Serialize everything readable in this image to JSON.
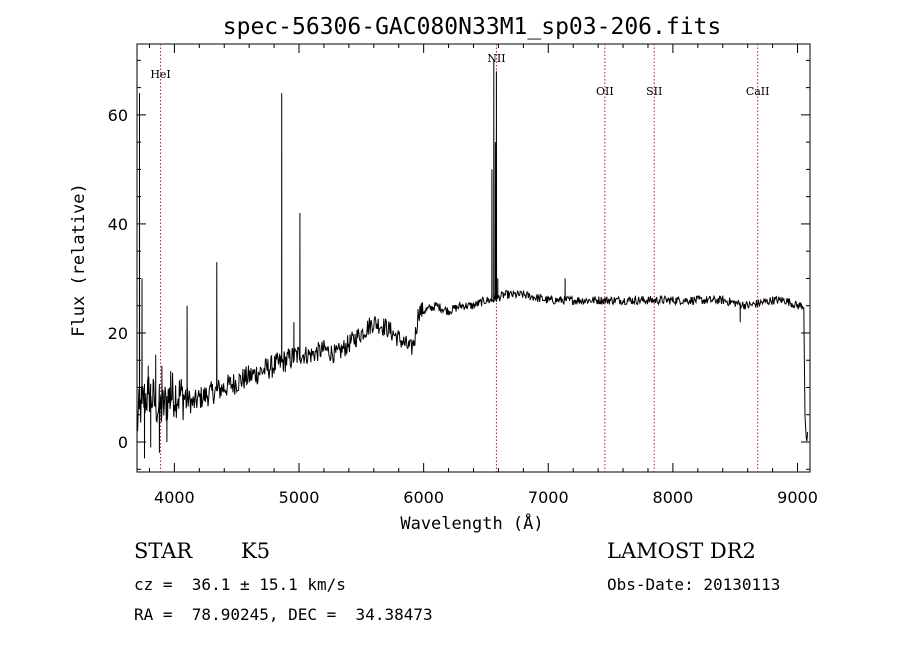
{
  "chart_data": {
    "type": "line",
    "title": "spec-56306-GAC080N33M1_sp03-206.fits",
    "xlabel": "Wavelength (Å)",
    "ylabel": "Flux (relative)",
    "xlim": [
      3700,
      9100
    ],
    "ylim": [
      -5.5,
      73
    ],
    "xticks": [
      4000,
      5000,
      6000,
      7000,
      8000,
      9000
    ],
    "yticks": [
      0,
      20,
      40,
      60
    ],
    "grid": false,
    "lines": [
      {
        "label": "HeI",
        "wavelength": 3889
      },
      {
        "label": "NII",
        "wavelength": 6584
      },
      {
        "label": "OII",
        "wavelength": 7454
      },
      {
        "label": "SII",
        "wavelength": 7850
      },
      {
        "label": "CaII",
        "wavelength": 8680
      }
    ],
    "anchors": [
      [
        3700,
        3
      ],
      [
        3720,
        6
      ],
      [
        3760,
        8
      ],
      [
        3800,
        9
      ],
      [
        3850,
        7
      ],
      [
        3900,
        6
      ],
      [
        3950,
        8
      ],
      [
        4000,
        9
      ],
      [
        4100,
        8
      ],
      [
        4150,
        7
      ],
      [
        4200,
        8
      ],
      [
        4300,
        9
      ],
      [
        4400,
        10
      ],
      [
        4500,
        11
      ],
      [
        4600,
        12
      ],
      [
        4700,
        13
      ],
      [
        4800,
        14
      ],
      [
        4900,
        15
      ],
      [
        5000,
        16
      ],
      [
        5100,
        16
      ],
      [
        5200,
        17
      ],
      [
        5300,
        16
      ],
      [
        5400,
        18
      ],
      [
        5500,
        20
      ],
      [
        5600,
        22
      ],
      [
        5700,
        21
      ],
      [
        5800,
        19
      ],
      [
        5900,
        17
      ],
      [
        5930,
        19
      ],
      [
        5960,
        24
      ],
      [
        6000,
        24
      ],
      [
        6100,
        25
      ],
      [
        6200,
        24
      ],
      [
        6300,
        25
      ],
      [
        6400,
        25
      ],
      [
        6500,
        26
      ],
      [
        6550,
        26
      ],
      [
        6650,
        27
      ],
      [
        6800,
        27
      ],
      [
        7000,
        26
      ],
      [
        7200,
        26
      ],
      [
        7400,
        26
      ],
      [
        7600,
        26
      ],
      [
        7800,
        26
      ],
      [
        8000,
        26
      ],
      [
        8200,
        26
      ],
      [
        8400,
        26
      ],
      [
        8600,
        25
      ],
      [
        8800,
        26
      ],
      [
        8900,
        26
      ],
      [
        9000,
        25
      ],
      [
        9050,
        25
      ],
      [
        9060,
        5
      ],
      [
        9070,
        0
      ],
      [
        9080,
        1
      ]
    ],
    "spikes": [
      [
        3720,
        64
      ],
      [
        3740,
        30
      ],
      [
        3760,
        -3
      ],
      [
        3790,
        14
      ],
      [
        3810,
        -1
      ],
      [
        3850,
        16
      ],
      [
        3880,
        -2
      ],
      [
        3900,
        14
      ],
      [
        3940,
        0
      ],
      [
        3970,
        13
      ],
      [
        4102,
        25
      ],
      [
        4340,
        33
      ],
      [
        4861,
        64
      ],
      [
        4959,
        22
      ],
      [
        5007,
        42
      ],
      [
        6548,
        50
      ],
      [
        6563,
        70
      ],
      [
        6575,
        55
      ],
      [
        6584,
        68
      ],
      [
        6595,
        30
      ],
      [
        7135,
        30
      ],
      [
        8540,
        22
      ]
    ]
  },
  "info": {
    "object_class": "STAR",
    "subclass": "K5",
    "survey": "LAMOST DR2",
    "redshift": "cz =  36.1 ± 15.1 km/s",
    "obs_date": "Obs-Date: 20130113",
    "coords": "RA =  78.90245, DEC =  34.38473"
  },
  "colors": {
    "spectrum": "#000000",
    "line_markers": "#b22222",
    "axes": "#000000"
  }
}
